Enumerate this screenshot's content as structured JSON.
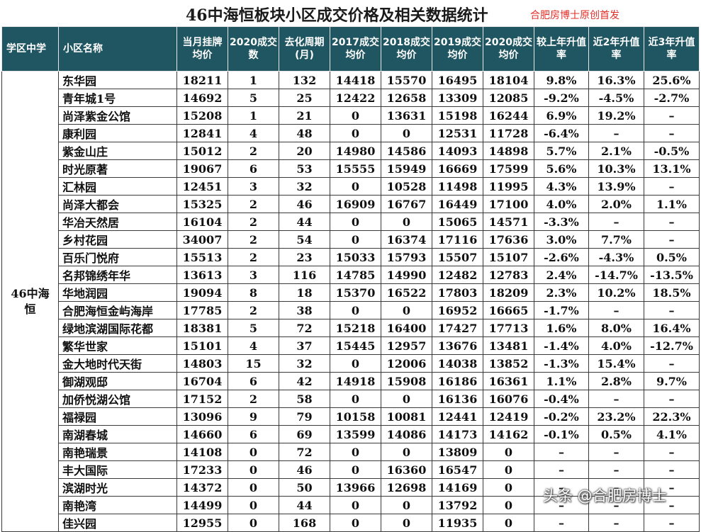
{
  "title": "46中海恒板块小区成交价格及相关数据统计",
  "credit": "合肥房博士原创首发",
  "watermark": "头条 @合肥房博士",
  "district": "46中海恒",
  "headers": [
    "学区中学",
    "小区名称",
    "当月挂牌均价",
    "2020成交数",
    "去化周期(月)",
    "2017成交均价",
    "2018成交均价",
    "2019成交均价",
    "2020成交均价",
    "较上年升值率",
    "近2年升值率",
    "近3年升值率"
  ],
  "rows": [
    {
      "name": "东华园",
      "cells": [
        "18211",
        "1",
        "132",
        "14418",
        "15570",
        "16495",
        "18104",
        "9.8%",
        "16.3%",
        "25.6%"
      ]
    },
    {
      "name": "青年城1号",
      "cells": [
        "14692",
        "5",
        "25",
        "12422",
        "12658",
        "13309",
        "12085",
        "-9.2%",
        "-4.5%",
        "-2.7%"
      ]
    },
    {
      "name": "尚泽紫金公馆",
      "cells": [
        "15208",
        "1",
        "21",
        "0",
        "13631",
        "15198",
        "16244",
        "6.9%",
        "19.2%",
        "–"
      ]
    },
    {
      "name": "康利园",
      "cells": [
        "12841",
        "4",
        "48",
        "0",
        "0",
        "12531",
        "11728",
        "-6.4%",
        "–",
        "–"
      ]
    },
    {
      "name": "紫金山庄",
      "cells": [
        "15012",
        "2",
        "20",
        "14980",
        "14586",
        "14093",
        "14898",
        "5.7%",
        "2.1%",
        "-0.5%"
      ]
    },
    {
      "name": "时光原著",
      "cells": [
        "19067",
        "6",
        "53",
        "15555",
        "15949",
        "16669",
        "17599",
        "5.6%",
        "10.3%",
        "13.1%"
      ]
    },
    {
      "name": "汇林园",
      "cells": [
        "12451",
        "3",
        "32",
        "0",
        "10528",
        "11498",
        "11995",
        "4.3%",
        "13.9%",
        "–"
      ]
    },
    {
      "name": "尚泽大都会",
      "cells": [
        "15325",
        "2",
        "46",
        "16909",
        "16767",
        "16449",
        "17100",
        "4.0%",
        "2.0%",
        "1.1%"
      ]
    },
    {
      "name": "华冶天然居",
      "cells": [
        "16104",
        "2",
        "44",
        "0",
        "0",
        "15065",
        "14571",
        "-3.3%",
        "–",
        "–"
      ]
    },
    {
      "name": "乡村花园",
      "cells": [
        "34007",
        "2",
        "54",
        "0",
        "16374",
        "17116",
        "17636",
        "3.0%",
        "7.7%",
        "–"
      ]
    },
    {
      "name": "百乐门悦府",
      "cells": [
        "15513",
        "2",
        "23",
        "15033",
        "15793",
        "15507",
        "15107",
        "-2.6%",
        "-4.3%",
        "0.5%"
      ]
    },
    {
      "name": "名邦锦绣年华",
      "cells": [
        "13613",
        "3",
        "116",
        "14785",
        "14990",
        "12482",
        "12783",
        "2.4%",
        "-14.7%",
        "-13.5%"
      ]
    },
    {
      "name": "华地润园",
      "cells": [
        "19094",
        "8",
        "18",
        "15370",
        "16522",
        "17803",
        "18209",
        "2.3%",
        "10.2%",
        "18.5%"
      ]
    },
    {
      "name": "合肥海恒金屿海岸",
      "cells": [
        "17785",
        "2",
        "38",
        "0",
        "0",
        "16952",
        "16665",
        "-1.7%",
        "–",
        "–"
      ]
    },
    {
      "name": "绿地滨湖国际花都",
      "cells": [
        "18381",
        "5",
        "72",
        "15218",
        "16400",
        "17427",
        "17713",
        "1.6%",
        "8.0%",
        "16.4%"
      ]
    },
    {
      "name": "繁华世家",
      "cells": [
        "15101",
        "4",
        "37",
        "15445",
        "12957",
        "13676",
        "13481",
        "-1.4%",
        "4.0%",
        "-12.7%"
      ]
    },
    {
      "name": "金大地时代天街",
      "cells": [
        "14803",
        "15",
        "32",
        "0",
        "12006",
        "14038",
        "13852",
        "-1.3%",
        "15.4%",
        "–"
      ]
    },
    {
      "name": "御湖观邸",
      "cells": [
        "16704",
        "6",
        "42",
        "14918",
        "15908",
        "16186",
        "16361",
        "1.1%",
        "2.8%",
        "9.7%"
      ]
    },
    {
      "name": "加侨悦湖公馆",
      "cells": [
        "17152",
        "2",
        "58",
        "0",
        "0",
        "16136",
        "16076",
        "-0.4%",
        "–",
        "–"
      ]
    },
    {
      "name": "福禄园",
      "cells": [
        "13096",
        "9",
        "79",
        "10158",
        "10081",
        "12441",
        "12419",
        "-0.2%",
        "23.2%",
        "22.3%"
      ]
    },
    {
      "name": "南湖春城",
      "cells": [
        "14660",
        "6",
        "69",
        "13599",
        "14086",
        "14173",
        "14162",
        "-0.1%",
        "0.5%",
        "4.1%"
      ]
    },
    {
      "name": "南艳瑞景",
      "cells": [
        "14108",
        "0",
        "72",
        "0",
        "0",
        "13809",
        "0",
        "–",
        "–",
        "–"
      ]
    },
    {
      "name": "丰大国际",
      "cells": [
        "17233",
        "0",
        "46",
        "0",
        "16360",
        "16547",
        "0",
        "–",
        "–",
        "–"
      ]
    },
    {
      "name": "滨湖时光",
      "cells": [
        "14372",
        "0",
        "50",
        "13966",
        "12698",
        "14169",
        "0",
        "–",
        "–",
        "–"
      ]
    },
    {
      "name": "南艳湾",
      "cells": [
        "14499",
        "0",
        "44",
        "0",
        "0",
        "13792",
        "0",
        "–",
        "–",
        "–"
      ]
    },
    {
      "name": "佳兴园",
      "cells": [
        "12955",
        "0",
        "168",
        "0",
        "0",
        "11935",
        "0",
        "–",
        "–",
        "–"
      ]
    }
  ]
}
